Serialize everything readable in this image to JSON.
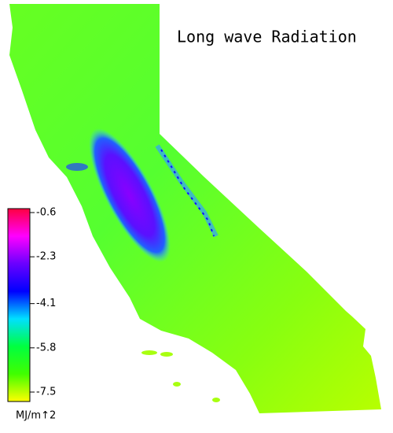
{
  "title": "Long wave Radiation",
  "colorbar": {
    "ticks": [
      -0.6,
      -2.3,
      -4.1,
      -5.8,
      -7.5
    ],
    "colors": [
      "#ff0040",
      "#ff00ff",
      "#6a00ff",
      "#0000ff",
      "#00e0ff",
      "#00ff40",
      "#40ff00",
      "#ffff00"
    ],
    "unit": "MJ/m↑2"
  }
}
